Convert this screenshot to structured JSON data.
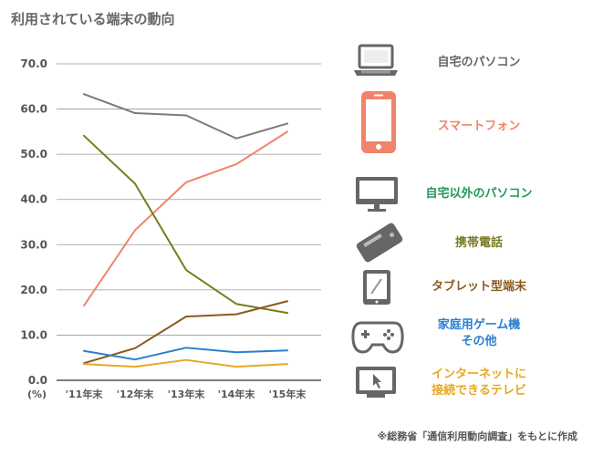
{
  "chart_data": {
    "type": "line",
    "title": "利用されている端末の動向",
    "y_unit": "(%)",
    "ylim": [
      0,
      70
    ],
    "yticks": [
      "70.0",
      "60.0",
      "50.0",
      "40.0",
      "30.0",
      "20.0",
      "10.0",
      "0.0"
    ],
    "categories": [
      "'11年末",
      "'12年末",
      "'13年末",
      "'14年末",
      "'15年末"
    ],
    "series": [
      {
        "name": "自宅のパソコン",
        "color": "#7a7a7a",
        "icon": "laptop-icon",
        "values": [
          63.3,
          59.1,
          58.6,
          53.5,
          56.8
        ]
      },
      {
        "name": "スマートフォン",
        "color": "#f0846a",
        "icon": "smartphone-icon",
        "values": [
          16.5,
          33.2,
          43.8,
          47.8,
          55.0
        ]
      },
      {
        "name": "自宅以外のパソコン",
        "color": "#1f9a5a",
        "icon": "monitor-icon",
        "values": [
          null,
          null,
          null,
          null,
          null
        ]
      },
      {
        "name": "携帯電話",
        "color": "#7a7b22",
        "icon": "mobile-phone-icon",
        "values": [
          54.1,
          43.5,
          24.4,
          16.9,
          14.9
        ]
      },
      {
        "name": "タブレット型端末",
        "color": "#8b5a1e",
        "icon": "tablet-icon",
        "values": [
          3.8,
          7.1,
          14.1,
          14.6,
          17.5
        ]
      },
      {
        "name": "家庭用ゲーム機\nその他",
        "color": "#2a7fd0",
        "icon": "game-controller-icon",
        "values": [
          6.5,
          4.6,
          7.2,
          6.2,
          6.6
        ]
      },
      {
        "name": "インターネットに\n接続できるテレビ",
        "color": "#e6a825",
        "icon": "tv-cursor-icon",
        "values": [
          3.6,
          3.0,
          4.5,
          3.0,
          3.6
        ]
      }
    ],
    "grid": true
  },
  "source_note": "※総務省「通信利用動向調査」をもとに作成"
}
